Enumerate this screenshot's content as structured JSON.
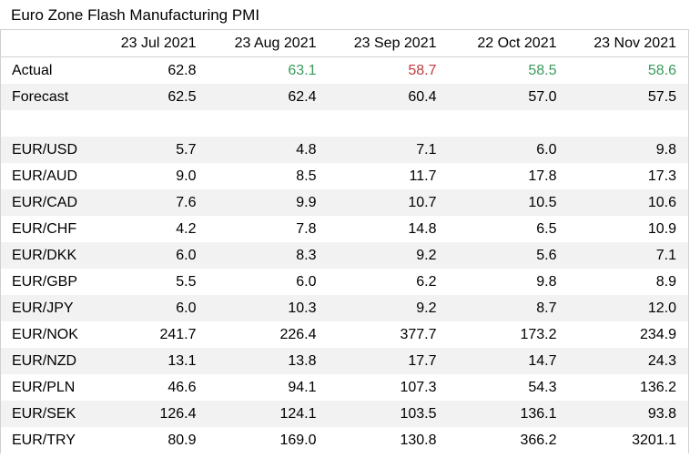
{
  "title": "Euro Zone Flash Manufacturing PMI",
  "columns": [
    "",
    "23 Jul 2021",
    "23 Aug 2021",
    "23 Sep 2021",
    "22 Oct 2021",
    "23 Nov 2021"
  ],
  "rows": [
    {
      "label": "Actual",
      "values": [
        "62.8",
        "63.1",
        "58.7",
        "58.5",
        "58.6"
      ]
    },
    {
      "label": "Forecast",
      "values": [
        "62.5",
        "62.4",
        "60.4",
        "57.0",
        "57.5"
      ]
    },
    {
      "label": "",
      "values": [
        "",
        "",
        "",
        "",
        ""
      ]
    },
    {
      "label": "EUR/USD",
      "values": [
        "5.7",
        "4.8",
        "7.1",
        "6.0",
        "9.8"
      ]
    },
    {
      "label": "EUR/AUD",
      "values": [
        "9.0",
        "8.5",
        "11.7",
        "17.8",
        "17.3"
      ]
    },
    {
      "label": "EUR/CAD",
      "values": [
        "7.6",
        "9.9",
        "10.7",
        "10.5",
        "10.6"
      ]
    },
    {
      "label": "EUR/CHF",
      "values": [
        "4.2",
        "7.8",
        "14.8",
        "6.5",
        "10.9"
      ]
    },
    {
      "label": "EUR/DKK",
      "values": [
        "6.0",
        "8.3",
        "9.2",
        "5.6",
        "7.1"
      ]
    },
    {
      "label": "EUR/GBP",
      "values": [
        "5.5",
        "6.0",
        "6.2",
        "9.8",
        "8.9"
      ]
    },
    {
      "label": "EUR/JPY",
      "values": [
        "6.0",
        "10.3",
        "9.2",
        "8.7",
        "12.0"
      ]
    },
    {
      "label": "EUR/NOK",
      "values": [
        "241.7",
        "226.4",
        "377.7",
        "173.2",
        "234.9"
      ]
    },
    {
      "label": "EUR/NZD",
      "values": [
        "13.1",
        "13.8",
        "17.7",
        "14.7",
        "24.3"
      ]
    },
    {
      "label": "EUR/PLN",
      "values": [
        "46.6",
        "94.1",
        "107.3",
        "54.3",
        "136.2"
      ]
    },
    {
      "label": "EUR/SEK",
      "values": [
        "126.4",
        "124.1",
        "103.5",
        "136.1",
        "93.8"
      ]
    },
    {
      "label": "EUR/TRY",
      "values": [
        "80.9",
        "169.0",
        "130.8",
        "366.2",
        "3201.1"
      ]
    }
  ],
  "colors": {
    "positive": "#3a9a5c",
    "negative": "#c0393b",
    "band": "#f2f2f2",
    "gridline": "#d0d0d0"
  },
  "actual_value_status": [
    "neutral",
    "positive",
    "negative",
    "positive",
    "positive"
  ]
}
